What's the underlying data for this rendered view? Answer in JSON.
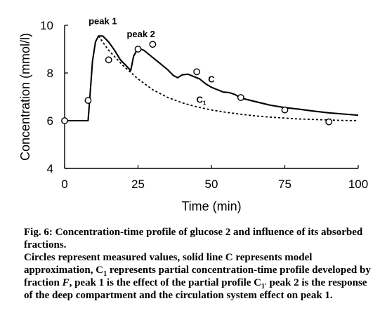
{
  "chart_data": {
    "type": "line",
    "xlabel": "Time (min)",
    "ylabel": "Concentration (mmol/l)",
    "xlim": [
      0,
      100
    ],
    "ylim": [
      4,
      10
    ],
    "xticks": [
      "0",
      "25",
      "50",
      "75",
      "100"
    ],
    "yticks": [
      "4",
      "6",
      "8",
      "10"
    ],
    "grid": false,
    "series": [
      {
        "name": "C",
        "style": "solid",
        "x": [
          0,
          8,
          8.5,
          9.5,
          10.5,
          11.5,
          13,
          15,
          17,
          19,
          21,
          22.5,
          23.5,
          25,
          27,
          29,
          31,
          33,
          35,
          37,
          38.5,
          40,
          42,
          44,
          46,
          48,
          50,
          52,
          54,
          56,
          58,
          60,
          65,
          70,
          75,
          80,
          85,
          90,
          95,
          100
        ],
        "y": [
          6,
          6,
          6.8,
          8.5,
          9.3,
          9.55,
          9.55,
          9.3,
          8.95,
          8.55,
          8.3,
          8.1,
          8.7,
          9.05,
          8.95,
          8.75,
          8.55,
          8.35,
          8.15,
          7.9,
          7.8,
          7.92,
          7.95,
          7.85,
          7.75,
          7.55,
          7.4,
          7.3,
          7.2,
          7.18,
          7.1,
          6.95,
          6.8,
          6.65,
          6.55,
          6.48,
          6.4,
          6.33,
          6.28,
          6.23
        ]
      },
      {
        "name": "C1",
        "style": "dashed",
        "x": [
          11.5,
          15,
          20,
          25,
          30,
          35,
          40,
          45,
          50,
          55,
          60,
          65,
          70,
          75,
          80,
          85,
          90,
          95,
          100
        ],
        "y": [
          9.55,
          8.95,
          8.3,
          7.75,
          7.3,
          6.98,
          6.75,
          6.58,
          6.45,
          6.35,
          6.27,
          6.2,
          6.15,
          6.11,
          6.07,
          6.05,
          6.03,
          6.01,
          6.0
        ]
      },
      {
        "name": "measured",
        "style": "markers",
        "x": [
          0,
          8,
          15,
          25,
          30,
          45,
          60,
          75,
          90
        ],
        "y": [
          6,
          6.85,
          8.55,
          9.0,
          9.2,
          8.05,
          6.97,
          6.45,
          5.95
        ]
      }
    ],
    "annotations": [
      {
        "text": "peak 1",
        "x": 13,
        "y": 10.05
      },
      {
        "text": "peak 2",
        "x": 26,
        "y": 9.5
      },
      {
        "text": "C",
        "x": 50,
        "y": 7.6
      },
      {
        "text": "C",
        "sub": "1",
        "x": 46.5,
        "y": 6.75
      }
    ]
  },
  "caption": {
    "title": "Fig. 6: Concentration-time profile of glucose 2 and influence of its absorbed fractions.",
    "line1": "Circles represent measured values, solid line C represents model approximation, C",
    "line1_sub": "1",
    "line2": " represents partial concentration-time profile developed by fraction ",
    "line2_italic": "F",
    "line3": ", peak 1 is the effect of the partial profile C",
    "line3_sub": "1'",
    "line4": " peak 2 is the response of the deep compartment and the circulation system effect on peak 1."
  }
}
